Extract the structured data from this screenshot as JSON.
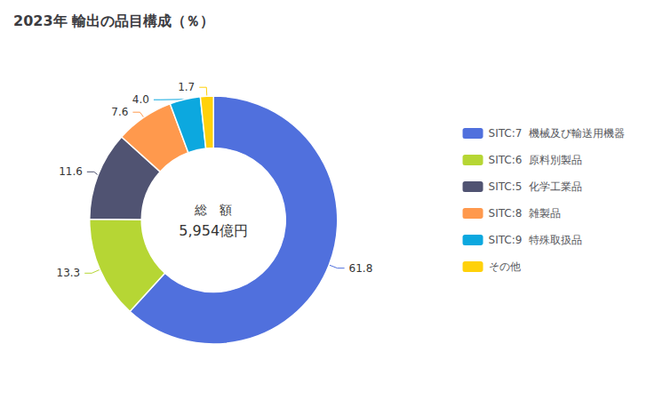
{
  "chart_data": {
    "type": "pie",
    "title": "2023年 輸出の品目構成（％）",
    "annotations": [
      "総　額",
      "5,954億円"
    ],
    "categories": [
      "SITC:7  機械及び輸送用機器",
      "SITC:6  原料別製品",
      "SITC:5  化学工業品",
      "SITC:8  雑製品",
      "SITC:9  特殊取扱品",
      "その他"
    ],
    "values": [
      61.8,
      13.3,
      11.6,
      7.6,
      4.0,
      1.7
    ],
    "value_labels": [
      "61.8",
      "13.3",
      "11.6",
      "7.6",
      "4.0",
      "1.7"
    ],
    "data_labels": true,
    "legend": "right"
  }
}
